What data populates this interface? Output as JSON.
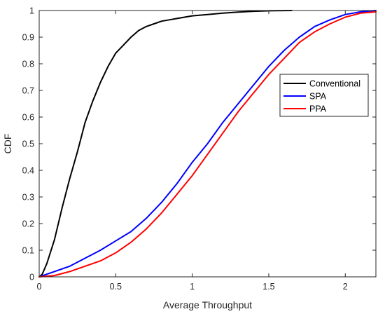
{
  "chart_data": {
    "type": "line",
    "title": "",
    "xlabel": "Average Throughput",
    "ylabel": "CDF",
    "xlim": [
      0,
      2.2
    ],
    "ylim": [
      0,
      1
    ],
    "xticks": [
      0,
      0.5,
      1,
      1.5,
      2
    ],
    "xtick_labels": [
      "0",
      "0.5",
      "1",
      "1.5",
      "2"
    ],
    "yticks": [
      0,
      0.1,
      0.2,
      0.3,
      0.4,
      0.5,
      0.6,
      0.7,
      0.8,
      0.9,
      1
    ],
    "ytick_labels": [
      "0",
      "0.1",
      "0.2",
      "0.3",
      "0.4",
      "0.5",
      "0.6",
      "0.7",
      "0.8",
      "0.9",
      "1"
    ],
    "grid": false,
    "legend_position": "right",
    "series": [
      {
        "name": "Conventional",
        "color": "#000000",
        "x": [
          0,
          0.02,
          0.05,
          0.1,
          0.15,
          0.2,
          0.25,
          0.3,
          0.35,
          0.4,
          0.45,
          0.5,
          0.55,
          0.6,
          0.65,
          0.7,
          0.75,
          0.8,
          0.85,
          0.9,
          0.95,
          1.0,
          1.1,
          1.2,
          1.3,
          1.4,
          1.5,
          1.65
        ],
        "y": [
          0,
          0.01,
          0.05,
          0.14,
          0.26,
          0.37,
          0.47,
          0.58,
          0.66,
          0.73,
          0.79,
          0.84,
          0.87,
          0.9,
          0.925,
          0.94,
          0.95,
          0.96,
          0.965,
          0.97,
          0.975,
          0.98,
          0.985,
          0.99,
          0.994,
          0.997,
          0.999,
          1.0
        ]
      },
      {
        "name": "SPA",
        "color": "#0000ff",
        "x": [
          0,
          0.1,
          0.2,
          0.3,
          0.4,
          0.5,
          0.6,
          0.7,
          0.8,
          0.9,
          1.0,
          1.1,
          1.2,
          1.3,
          1.4,
          1.5,
          1.6,
          1.7,
          1.8,
          1.9,
          2.0,
          2.1,
          2.2
        ],
        "y": [
          0,
          0.02,
          0.04,
          0.07,
          0.1,
          0.135,
          0.17,
          0.22,
          0.28,
          0.35,
          0.43,
          0.5,
          0.58,
          0.65,
          0.72,
          0.79,
          0.85,
          0.9,
          0.94,
          0.965,
          0.985,
          0.995,
          1.0
        ]
      },
      {
        "name": "PPA",
        "color": "#ff0000",
        "x": [
          0,
          0.1,
          0.2,
          0.3,
          0.4,
          0.5,
          0.6,
          0.7,
          0.8,
          0.9,
          1.0,
          1.1,
          1.2,
          1.3,
          1.4,
          1.5,
          1.6,
          1.7,
          1.8,
          1.9,
          2.0,
          2.1,
          2.2
        ],
        "y": [
          0,
          0.005,
          0.02,
          0.04,
          0.06,
          0.09,
          0.13,
          0.18,
          0.24,
          0.31,
          0.38,
          0.46,
          0.54,
          0.62,
          0.69,
          0.76,
          0.82,
          0.88,
          0.92,
          0.95,
          0.975,
          0.99,
          0.995
        ]
      }
    ]
  }
}
